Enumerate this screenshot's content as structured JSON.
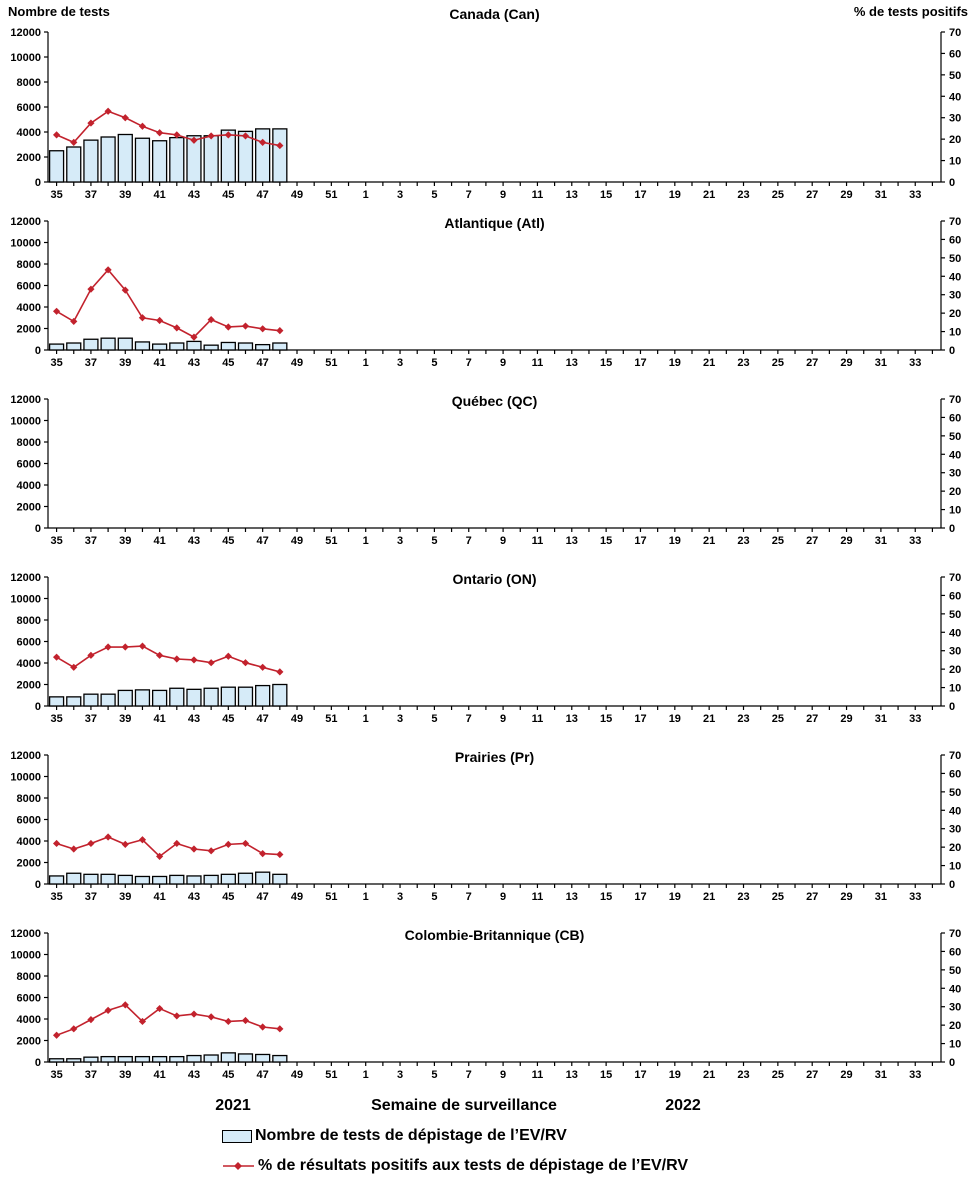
{
  "colors": {
    "bar_fill": "#D6EBF8",
    "bar_border": "#000000",
    "line": "#C2222D",
    "axis": "#000000"
  },
  "axes": {
    "left_label": "Nombre de tests",
    "right_label": "% de tests positifs",
    "left_ticks": [
      0,
      2000,
      4000,
      6000,
      8000,
      10000,
      12000
    ],
    "right_ticks": [
      0,
      10,
      20,
      30,
      40,
      50,
      60,
      70
    ],
    "left_max": 12000,
    "right_max": 70,
    "weeks_start": 35,
    "weeks_total": 52,
    "x_tick_labels": [
      "35",
      "37",
      "39",
      "41",
      "43",
      "45",
      "47",
      "49",
      "51",
      "1",
      "3",
      "5",
      "7",
      "9",
      "11",
      "13",
      "15",
      "17",
      "19",
      "21",
      "23",
      "25",
      "27",
      "29",
      "31",
      "33"
    ]
  },
  "footer": {
    "year_left": "2021",
    "xaxis_title": "Semaine de surveillance",
    "year_right": "2022"
  },
  "legend": {
    "bar_label": "Nombre de tests de dépistage de l’EV/RV",
    "line_label": "% de résultats positifs aux tests de dépistage de l’EV/RV"
  },
  "chart_data": [
    {
      "type": "bar",
      "title": "Canada (Can)",
      "first_week": 35,
      "ylim_left": [
        0,
        12000
      ],
      "ylim_right": [
        0,
        70
      ],
      "series": [
        {
          "name": "Nombre de tests de dépistage de l’EV/RV",
          "kind": "bar",
          "axis": "left",
          "values": [
            2500,
            2800,
            3350,
            3600,
            3800,
            3500,
            3300,
            3550,
            3700,
            3700,
            4150,
            4050,
            4250,
            4250
          ]
        },
        {
          "name": "% de résultats positifs aux tests de dépistage de l’EV/RV",
          "kind": "line",
          "axis": "right",
          "values": [
            22,
            18.5,
            27.5,
            33,
            30,
            26,
            23,
            22,
            19.5,
            21.5,
            22,
            21.5,
            18.5,
            17
          ]
        }
      ]
    },
    {
      "type": "bar",
      "title": "Atlantique (Atl)",
      "first_week": 35,
      "ylim_left": [
        0,
        12000
      ],
      "ylim_right": [
        0,
        70
      ],
      "series": [
        {
          "name": "Nombre de tests de dépistage de l’EV/RV",
          "kind": "bar",
          "axis": "left",
          "values": [
            550,
            650,
            1000,
            1100,
            1100,
            750,
            550,
            650,
            800,
            450,
            700,
            650,
            500,
            650
          ]
        },
        {
          "name": "% de résultats positifs aux tests de dépistage de l’EV/RV",
          "kind": "line",
          "axis": "right",
          "values": [
            21,
            15.5,
            33,
            43.5,
            32.5,
            17.5,
            16,
            12,
            7,
            16.5,
            12.5,
            13,
            11.5,
            10.5
          ]
        }
      ]
    },
    {
      "type": "bar",
      "title": "Québec (QC)",
      "first_week": 35,
      "ylim_left": [
        0,
        12000
      ],
      "ylim_right": [
        0,
        70
      ],
      "series": [
        {
          "name": "Nombre de tests de dépistage de l’EV/RV",
          "kind": "bar",
          "axis": "left",
          "values": []
        },
        {
          "name": "% de résultats positifs aux tests de dépistage de l’EV/RV",
          "kind": "line",
          "axis": "right",
          "values": []
        }
      ]
    },
    {
      "type": "bar",
      "title": "Ontario (ON)",
      "first_week": 35,
      "ylim_left": [
        0,
        12000
      ],
      "ylim_right": [
        0,
        70
      ],
      "series": [
        {
          "name": "Nombre de tests de dépistage de l’EV/RV",
          "kind": "bar",
          "axis": "left",
          "values": [
            850,
            850,
            1100,
            1100,
            1450,
            1500,
            1450,
            1650,
            1550,
            1650,
            1750,
            1750,
            1900,
            2000
          ]
        },
        {
          "name": "% de résultats positifs aux tests de dépistage de l’EV/RV",
          "kind": "line",
          "axis": "right",
          "values": [
            26.5,
            21,
            27.5,
            32,
            32,
            32.5,
            27.5,
            25.5,
            25,
            23.5,
            27,
            23.5,
            21,
            18.5
          ]
        }
      ]
    },
    {
      "type": "bar",
      "title": "Prairies (Pr)",
      "first_week": 35,
      "ylim_left": [
        0,
        12000
      ],
      "ylim_right": [
        0,
        70
      ],
      "series": [
        {
          "name": "Nombre de tests de dépistage de l’EV/RV",
          "kind": "bar",
          "axis": "left",
          "values": [
            750,
            1000,
            900,
            900,
            800,
            700,
            700,
            800,
            750,
            800,
            900,
            1000,
            1100,
            900
          ]
        },
        {
          "name": "% de résultats positifs aux tests de dépistage de l’EV/RV",
          "kind": "line",
          "axis": "right",
          "values": [
            22,
            19,
            22,
            25.5,
            21.5,
            24,
            15,
            22,
            19,
            18,
            21.5,
            22,
            16.5,
            16
          ]
        }
      ]
    },
    {
      "type": "bar",
      "title": "Colombie-Britannique (CB)",
      "first_week": 35,
      "ylim_left": [
        0,
        12000
      ],
      "ylim_right": [
        0,
        70
      ],
      "series": [
        {
          "name": "Nombre de tests de dépistage de l’EV/RV",
          "kind": "bar",
          "axis": "left",
          "values": [
            300,
            300,
            450,
            500,
            500,
            500,
            500,
            500,
            600,
            650,
            850,
            750,
            700,
            600
          ]
        },
        {
          "name": "% de résultats positifs aux tests de dépistage de l’EV/RV",
          "kind": "line",
          "axis": "right",
          "values": [
            14.5,
            18,
            23,
            28,
            31,
            22,
            29,
            25,
            26,
            24.5,
            22,
            22.5,
            19,
            18
          ]
        }
      ]
    }
  ]
}
